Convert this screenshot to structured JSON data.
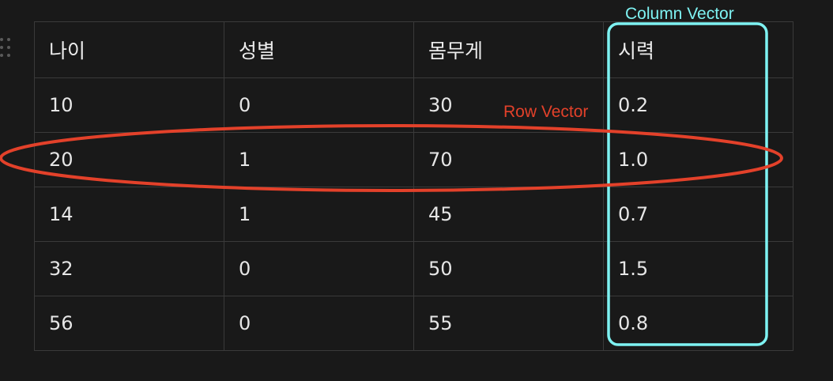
{
  "table": {
    "headers": [
      "나이",
      "성별",
      "몸무게",
      "시력"
    ],
    "rows": [
      [
        "10",
        "0",
        "30",
        "0.2"
      ],
      [
        "20",
        "1",
        "70",
        "1.0"
      ],
      [
        "14",
        "1",
        "45",
        "0.7"
      ],
      [
        "32",
        "0",
        "50",
        "1.5"
      ],
      [
        "56",
        "0",
        "55",
        "0.8"
      ]
    ]
  },
  "annotations": {
    "column_label": "Column Vector",
    "column_color": "#7ef2f2",
    "row_label": "Row Vector",
    "row_color": "#e3412a"
  },
  "colors": {
    "background": "#191919",
    "cell_border": "#3a3a3a",
    "text": "#e6e6e6"
  }
}
